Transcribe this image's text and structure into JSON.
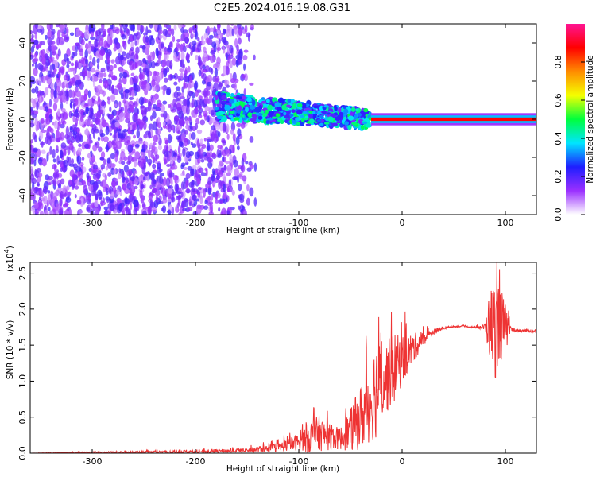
{
  "title": "C2E5.2024.016.19.08.G31",
  "chart_data": [
    {
      "type": "heatmap",
      "title": "",
      "xlabel": "Height of straight line (km)",
      "ylabel": "Frequency (Hz)",
      "xlim": [
        -360,
        130
      ],
      "ylim": [
        -50,
        50
      ],
      "xticks": [
        -300,
        -200,
        -100,
        0,
        100
      ],
      "yticks": [
        -40,
        -20,
        0,
        20,
        40
      ],
      "colorbar": {
        "label": "Normalized spectral amplitude",
        "range": [
          0.0,
          1.0
        ],
        "ticks": [
          0.0,
          0.2,
          0.4,
          0.6,
          0.8
        ],
        "colormap": [
          "#ffffff",
          "#9b30ff",
          "#1e1eff",
          "#00e5ff",
          "#00ff3c",
          "#f5ff00",
          "#ff8c00",
          "#ff0000",
          "#ff1493"
        ]
      },
      "regions": [
        {
          "x_range": [
            -360,
            -160
          ],
          "freq_range": [
            -50,
            50
          ],
          "amplitude": "low (0.0–0.2), noisy, spread across band"
        },
        {
          "x_range": [
            -180,
            -30
          ],
          "freq_center_start": 7,
          "freq_center_end": 0,
          "amplitude": "0.2–0.5"
        },
        {
          "x_range": [
            -30,
            130
          ],
          "freq_center": 0,
          "amplitude": "~0.9 (peak line)"
        }
      ],
      "grid": false
    },
    {
      "type": "line",
      "title": "",
      "xlabel": "Height of straight line (km)",
      "ylabel": "SNR (10 * v/v)",
      "y_scale_label": "(x10",
      "y_scale_exp": "4",
      "y_scale_close": ")",
      "xlim": [
        -360,
        130
      ],
      "ylim": [
        0.0,
        2.65
      ],
      "xticks": [
        -300,
        -200,
        -100,
        0,
        100
      ],
      "yticks": [
        "0.0",
        "0.5",
        "1.0",
        "1.5",
        "2.0",
        "2.5"
      ],
      "series": [
        {
          "color": "#ee3333",
          "x": [
            -360,
            -300,
            -200,
            -150,
            -120,
            -100,
            -90,
            -80,
            -70,
            -60,
            -50,
            -40,
            -30,
            -25,
            -20,
            -15,
            -10,
            -5,
            0,
            10,
            20,
            30,
            40,
            50,
            60,
            70,
            80,
            85,
            90,
            95,
            100,
            105,
            110,
            120,
            130
          ],
          "y": [
            0.0,
            0.01,
            0.02,
            0.04,
            0.08,
            0.15,
            0.22,
            0.28,
            0.22,
            0.2,
            0.32,
            0.5,
            0.75,
            0.9,
            1.0,
            1.05,
            1.15,
            1.2,
            1.3,
            1.45,
            1.58,
            1.68,
            1.74,
            1.76,
            1.76,
            1.75,
            1.75,
            1.78,
            1.72,
            1.8,
            1.72,
            1.72,
            1.71,
            1.7,
            1.69
          ],
          "noise": [
            0.0,
            0.01,
            0.02,
            0.03,
            0.06,
            0.12,
            0.22,
            0.25,
            0.18,
            0.15,
            0.3,
            0.45,
            0.6,
            0.7,
            0.55,
            0.5,
            0.5,
            0.45,
            0.35,
            0.22,
            0.1,
            0.04,
            0.02,
            0.01,
            0.01,
            0.01,
            0.05,
            0.5,
            0.7,
            0.55,
            0.35,
            0.03,
            0.02,
            0.02,
            0.02
          ]
        }
      ],
      "grid": false
    }
  ]
}
